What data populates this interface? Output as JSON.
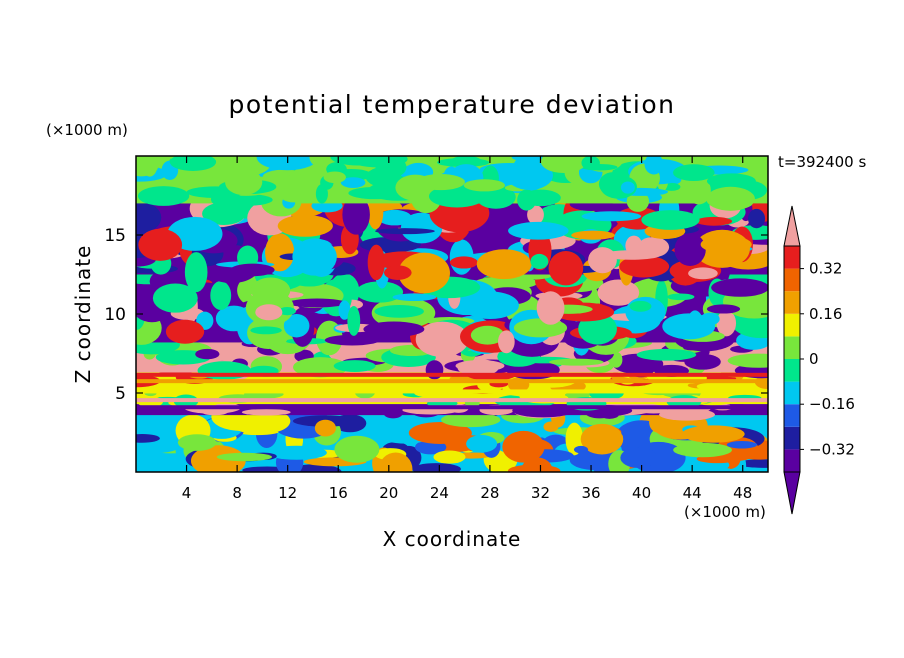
{
  "chart_data": {
    "type": "heatmap",
    "title": "potential temperature deviation",
    "xlabel": "X coordinate",
    "ylabel": "Z coordinate",
    "x_unit": "(×1000 m)",
    "y_unit": "(×1000 m)",
    "time_label": "t=392400 s",
    "xlim": [
      0,
      50
    ],
    "ylim": [
      0,
      20
    ],
    "x_ticks": [
      4,
      8,
      12,
      16,
      20,
      24,
      28,
      32,
      36,
      40,
      44,
      48
    ],
    "y_ticks": [
      5,
      10,
      15
    ],
    "colorbar": {
      "levels": [
        -0.4,
        -0.32,
        -0.24,
        -0.16,
        -0.08,
        0,
        0.08,
        0.16,
        0.24,
        0.32,
        0.4
      ],
      "tick_labels": [
        {
          "value": 0.32,
          "label": "0.32"
        },
        {
          "value": 0.16,
          "label": "0.16"
        },
        {
          "value": 0,
          "label": "0"
        },
        {
          "value": -0.16,
          "label": "−0.16"
        },
        {
          "value": -0.32,
          "label": "−0.32"
        }
      ],
      "colors": [
        "#5a00a0",
        "#1e1ea0",
        "#1e5ae6",
        "#00c8f0",
        "#00e68c",
        "#78e63c",
        "#f0f000",
        "#f0a000",
        "#f06400",
        "#e61e1e",
        "#f0a0a0"
      ]
    },
    "bands": [
      {
        "z0": 0,
        "z1": 3.6,
        "palette": [
          3,
          5,
          6,
          7,
          8,
          2,
          1
        ]
      },
      {
        "z0": 3.6,
        "z1": 4.3,
        "palette": [
          0,
          10
        ]
      },
      {
        "z0": 4.3,
        "z1": 5.2,
        "palette": [
          6,
          5,
          4
        ]
      },
      {
        "z0": 5.2,
        "z1": 6.3,
        "palette": [
          6,
          7,
          9
        ]
      },
      {
        "z0": 6.3,
        "z1": 8.2,
        "palette": [
          10,
          0,
          4,
          5
        ]
      },
      {
        "z0": 8.2,
        "z1": 12.5,
        "palette": [
          0,
          10,
          9,
          5,
          4,
          3
        ]
      },
      {
        "z0": 12.5,
        "z1": 17.0,
        "palette": [
          0,
          10,
          9,
          7,
          4,
          3,
          1
        ]
      },
      {
        "z0": 17.0,
        "z1": 20.0,
        "palette": [
          5,
          4,
          3
        ]
      }
    ]
  }
}
